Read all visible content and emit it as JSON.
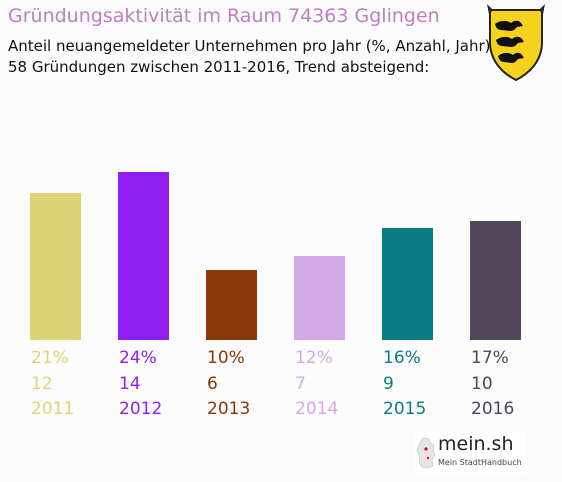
{
  "header": {
    "title": "Gründungsaktivität im Raum 74363 Gglingen",
    "subtitle_line1": "Anteil neuangemeldeter Unternehmen pro Jahr (%, Anzahl, Jahr)",
    "subtitle_line2": "58 Gründungen zwischen 2011-2016, Trend absteigend:"
  },
  "logo": {
    "name": "mein.sh",
    "tagline": "Mein StadtHandbuch",
    "icon": "germany-map-icon"
  },
  "coat_of_arms": {
    "icon": "baden-wuerttemberg-coat-of-arms-icon"
  },
  "chart_data": {
    "type": "bar",
    "categories": [
      "2011",
      "2012",
      "2013",
      "2014",
      "2015",
      "2016"
    ],
    "series": [
      {
        "values": [
          21,
          24,
          10,
          12,
          16,
          17
        ],
        "labels": [
          "21%",
          "24%",
          "10%",
          "12%",
          "16%",
          "17%"
        ],
        "counts": [
          "12",
          "14",
          "6",
          "7",
          "9",
          "10"
        ]
      }
    ],
    "colors": [
      "#ddd575",
      "#8f1ff2",
      "#8a370a",
      "#d2a9e6",
      "#097b82",
      "#4f4659"
    ],
    "ylim": [
      0,
      24
    ],
    "grid": false,
    "legend": "none"
  }
}
